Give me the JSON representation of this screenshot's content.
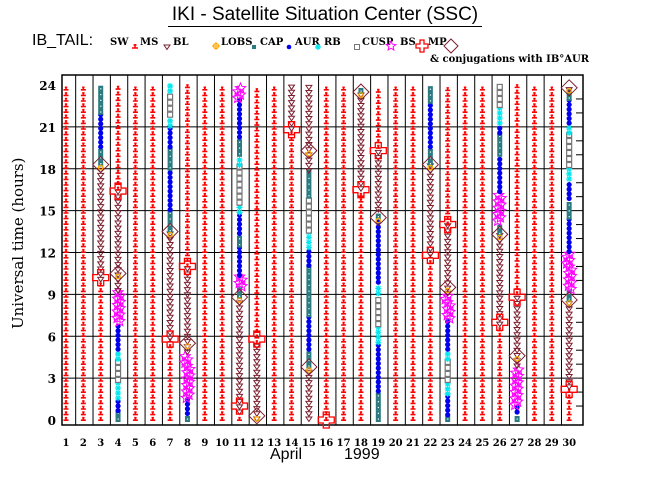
{
  "title": "IKI - Satellite Situation Center (SSC)",
  "subject": "IB_TAIL:",
  "legend": [
    {
      "label": "SW",
      "symbol": "sw",
      "color": "#ff0000"
    },
    {
      "label": "MS",
      "symbol": "ms",
      "color": "#7b1f2f"
    },
    {
      "label": "BL",
      "symbol": "bl",
      "color": "#ffaa00"
    },
    {
      "label": "LOBS",
      "symbol": "lobs",
      "color": "#2a7a80"
    },
    {
      "label": "CAP",
      "symbol": "cap",
      "color": "#0000ee"
    },
    {
      "label": "AUR",
      "symbol": "aur",
      "color": "#00e5ee"
    },
    {
      "label": "RB",
      "symbol": "rb",
      "color": "#777777"
    },
    {
      "label": "CUSP",
      "symbol": "cusp",
      "color": "#ff00ff"
    },
    {
      "label": "BS",
      "symbol": "bs",
      "color": "#ff0000"
    },
    {
      "label": "MP",
      "symbol": "mp",
      "color": "#7b1f2f"
    }
  ],
  "conjugation_note": "& conjugations with IB°AUR",
  "chart_data": {
    "type": "scatter",
    "title": "IKI - Satellite Situation Center (SSC)",
    "xlabel_month": "April",
    "xlabel_year": "1999",
    "ylabel": "Universal time (hours)",
    "xticks": [
      "1",
      "2",
      "3",
      "4",
      "5",
      "6",
      "7",
      "8",
      "9",
      "10",
      "11",
      "12",
      "13",
      "14",
      "15",
      "16",
      "17",
      "18",
      "19",
      "20",
      "21",
      "22",
      "23",
      "24",
      "25",
      "26",
      "27",
      "28",
      "29",
      "30"
    ],
    "yticks": [
      "0",
      "3",
      "6",
      "9",
      "12",
      "15",
      "18",
      "21",
      "24"
    ],
    "ylim": [
      0,
      24
    ],
    "xlim": [
      1,
      30
    ],
    "grid": true,
    "days": [
      {
        "day": 1,
        "segments": [
          [
            "sw",
            0,
            24
          ]
        ]
      },
      {
        "day": 2,
        "segments": [
          [
            "sw",
            0,
            24
          ]
        ]
      },
      {
        "day": 3,
        "segments": [
          [
            "sw",
            0,
            10
          ],
          [
            "ms",
            10,
            18.3
          ],
          [
            "lobs",
            18.3,
            19.5
          ],
          [
            "cap",
            19.5,
            22
          ],
          [
            "lobs",
            22,
            24
          ]
        ],
        "mp": [
          10.2
        ],
        "conj": [
          18.3
        ]
      },
      {
        "day": 4,
        "segments": [
          [
            "lobs",
            0,
            0.6
          ],
          [
            "cap",
            0.6,
            1.5
          ],
          [
            "aur",
            1.5,
            2.8
          ],
          [
            "rb",
            2.8,
            4.3
          ],
          [
            "aur",
            4.3,
            5
          ],
          [
            "cap",
            5,
            7
          ],
          [
            "cusp",
            7,
            9.2
          ],
          [
            "ms",
            9.2,
            16.5
          ],
          [
            "sw",
            16.5,
            24
          ]
        ],
        "mp": [
          16.4
        ],
        "conj": [
          10.5
        ]
      },
      {
        "day": 5,
        "segments": [
          [
            "sw",
            0,
            24
          ]
        ]
      },
      {
        "day": 6,
        "segments": [
          [
            "sw",
            0,
            24
          ]
        ]
      },
      {
        "day": 7,
        "segments": [
          [
            "sw",
            0,
            5.8
          ],
          [
            "ms",
            5.8,
            13.5
          ],
          [
            "lobs",
            13.5,
            15
          ],
          [
            "cap",
            15,
            18
          ],
          [
            "lobs",
            18,
            19.5
          ],
          [
            "cap",
            19.5,
            21
          ],
          [
            "aur",
            21,
            21.8
          ],
          [
            "rb",
            21.8,
            23.5
          ],
          [
            "aur",
            23.5,
            24
          ]
        ],
        "mp": [
          5.8
        ],
        "conj": [
          13.5
        ]
      },
      {
        "day": 8,
        "segments": [
          [
            "lobs",
            0,
            0.4
          ],
          [
            "cap",
            0.4,
            1.5
          ],
          [
            "cusp",
            1.5,
            4.8
          ],
          [
            "ms",
            4.8,
            11
          ],
          [
            "sw",
            11,
            24
          ]
        ],
        "mp": [
          11
        ],
        "conj": [
          5.5
        ]
      },
      {
        "day": 9,
        "segments": [
          [
            "sw",
            0,
            24
          ]
        ]
      },
      {
        "day": 10,
        "segments": [
          [
            "sw",
            0,
            24
          ]
        ]
      },
      {
        "day": 11,
        "segments": [
          [
            "sw",
            0,
            0.5
          ],
          [
            "ms",
            0.5,
            8.8
          ],
          [
            "lobs",
            8.8,
            9.5
          ],
          [
            "cusp",
            9.5,
            10.3
          ],
          [
            "cap",
            10.3,
            12.5
          ],
          [
            "lobs",
            12.5,
            13.3
          ],
          [
            "cap",
            13.3,
            14.8
          ],
          [
            "aur",
            14.8,
            15.5
          ],
          [
            "rb",
            15.5,
            18.2
          ],
          [
            "aur",
            18.2,
            19
          ],
          [
            "lobs",
            19,
            20.2
          ],
          [
            "cap",
            20.2,
            23
          ],
          [
            "cusp",
            23,
            24
          ]
        ],
        "mp": [
          1
        ],
        "conj": [
          8.8
        ]
      },
      {
        "day": 12,
        "segments": [
          [
            "ms",
            0,
            5.5
          ],
          [
            "sw",
            5.5,
            24
          ]
        ],
        "mp": [
          5.8
        ],
        "conj": [
          0.3
        ]
      },
      {
        "day": 13,
        "segments": [
          [
            "sw",
            0,
            24
          ]
        ]
      },
      {
        "day": 14,
        "segments": [
          [
            "sw",
            0,
            20.8
          ],
          [
            "ms",
            20.8,
            24
          ]
        ],
        "mp": [
          20.8
        ]
      },
      {
        "day": 15,
        "segments": [
          [
            "ms",
            0,
            3.8
          ],
          [
            "lobs",
            3.8,
            5
          ],
          [
            "cap",
            5,
            7.5
          ],
          [
            "lobs",
            7.5,
            11
          ],
          [
            "cap",
            11,
            12.3
          ],
          [
            "aur",
            12.3,
            13.5
          ],
          [
            "rb",
            13.5,
            16
          ],
          [
            "lobs",
            16,
            17.8
          ],
          [
            "ms",
            17.8,
            24
          ]
        ],
        "conj": [
          3.8,
          19.3
        ]
      },
      {
        "day": 16,
        "segments": [
          [
            "sw",
            0,
            24
          ]
        ],
        "mp": [
          0
        ]
      },
      {
        "day": 17,
        "segments": [
          [
            "sw",
            0,
            24
          ]
        ]
      },
      {
        "day": 18,
        "segments": [
          [
            "sw",
            0,
            16.5
          ],
          [
            "ms",
            16.5,
            23.5
          ],
          [
            "lobs",
            23.5,
            24
          ]
        ],
        "mp": [
          16.5
        ],
        "conj": [
          23.5
        ]
      },
      {
        "day": 19,
        "segments": [
          [
            "lobs",
            0,
            2
          ],
          [
            "cap",
            2,
            5.5
          ],
          [
            "aur",
            5.5,
            6.8
          ],
          [
            "rb",
            6.8,
            9
          ],
          [
            "aur",
            9,
            9.8
          ],
          [
            "cap",
            9.8,
            14.5
          ],
          [
            "lobs",
            14.5,
            15
          ],
          [
            "ms",
            15,
            19.5
          ],
          [
            "sw",
            19.5,
            24
          ]
        ],
        "mp": [
          19.3
        ],
        "conj": [
          14.5
        ]
      },
      {
        "day": 20,
        "segments": [
          [
            "sw",
            0,
            24
          ]
        ]
      },
      {
        "day": 21,
        "segments": [
          [
            "sw",
            0,
            24
          ]
        ]
      },
      {
        "day": 22,
        "segments": [
          [
            "sw",
            0,
            11.8
          ],
          [
            "ms",
            11.8,
            18.3
          ],
          [
            "lobs",
            18.3,
            19.5
          ],
          [
            "cap",
            19.5,
            22.8
          ],
          [
            "lobs",
            22.8,
            24
          ]
        ],
        "mp": [
          11.8
        ],
        "conj": [
          18.3
        ]
      },
      {
        "day": 23,
        "segments": [
          [
            "lobs",
            0,
            0.3
          ],
          [
            "cap",
            0.3,
            1.8
          ],
          [
            "aur",
            1.8,
            2.8
          ],
          [
            "rb",
            2.8,
            4.3
          ],
          [
            "aur",
            4.3,
            5
          ],
          [
            "cap",
            5,
            7.2
          ],
          [
            "cusp",
            7.2,
            9
          ],
          [
            "ms",
            9,
            14
          ],
          [
            "sw",
            14,
            24
          ]
        ],
        "mp": [
          14
        ],
        "conj": [
          9.5
        ]
      },
      {
        "day": 24,
        "segments": [
          [
            "sw",
            0,
            24
          ]
        ]
      },
      {
        "day": 25,
        "segments": [
          [
            "sw",
            0,
            24
          ]
        ]
      },
      {
        "day": 26,
        "segments": [
          [
            "sw",
            0,
            6.8
          ],
          [
            "ms",
            6.8,
            13.3
          ],
          [
            "lobs",
            13.3,
            14.2
          ],
          [
            "cusp",
            14.2,
            16.3
          ],
          [
            "cap",
            16.3,
            19
          ],
          [
            "lobs",
            19,
            20.5
          ],
          [
            "cap",
            20.5,
            21.2
          ],
          [
            "aur",
            21.2,
            22.5
          ],
          [
            "rb",
            22.5,
            24
          ]
        ],
        "mp": [
          7
        ],
        "conj": [
          13.3
        ]
      },
      {
        "day": 27,
        "segments": [
          [
            "lobs",
            0,
            0.5
          ],
          [
            "cap",
            0.5,
            1
          ],
          [
            "cusp",
            1,
            3.8
          ],
          [
            "ms",
            3.8,
            9
          ],
          [
            "sw",
            9,
            24
          ]
        ],
        "mp": [
          8.8
        ],
        "conj": [
          4.6
        ]
      },
      {
        "day": 28,
        "segments": [
          [
            "sw",
            0,
            24
          ]
        ]
      },
      {
        "day": 29,
        "segments": [
          [
            "sw",
            0,
            24
          ]
        ]
      },
      {
        "day": 30,
        "segments": [
          [
            "sw",
            0,
            2.3
          ],
          [
            "ms",
            2.3,
            8.6
          ],
          [
            "lobs",
            8.6,
            9.3
          ],
          [
            "cusp",
            9.3,
            12
          ],
          [
            "cap",
            12,
            14.5
          ],
          [
            "lobs",
            14.5,
            15.8
          ],
          [
            "cap",
            15.8,
            17.2
          ],
          [
            "aur",
            17.2,
            18.2
          ],
          [
            "rb",
            18.2,
            20.5
          ],
          [
            "aur",
            20.5,
            21.2
          ],
          [
            "cap",
            21.2,
            23
          ],
          [
            "lobs",
            23,
            23.6
          ],
          [
            "ms",
            23.6,
            24
          ]
        ],
        "mp": [
          2.2
        ],
        "conj": [
          8.6,
          23.8
        ]
      }
    ]
  }
}
